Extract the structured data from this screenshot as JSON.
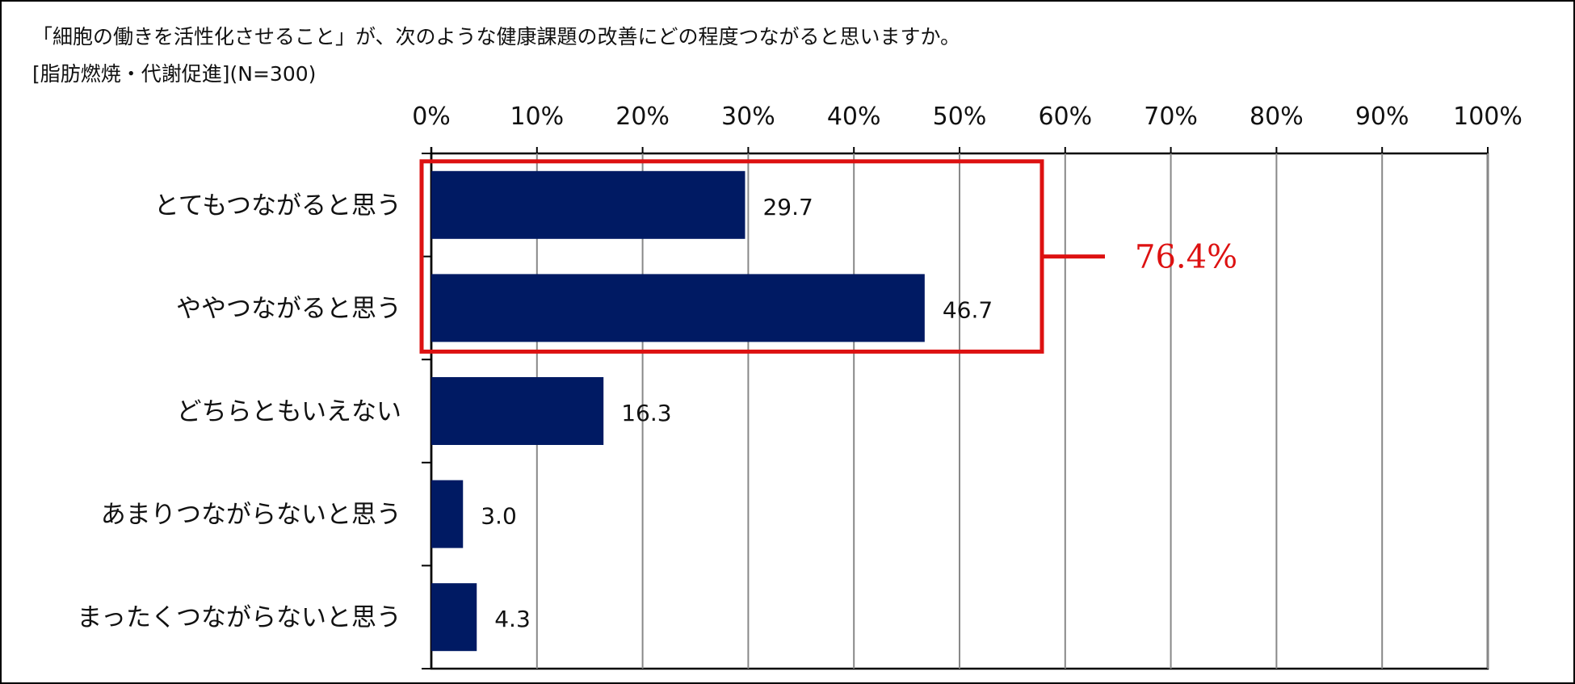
{
  "title": "「細胞の働きを活性化させること」が、次のような健康課題の改善にどの程度つながると思いますか。",
  "subtitle": "[脂肪燃焼・代謝促進](N=300)",
  "colors": {
    "bar": "#001a63",
    "highlight": "#dd1111",
    "grid": "#888888",
    "axis": "#000000"
  },
  "chart_data": {
    "type": "bar",
    "orientation": "horizontal",
    "categories": [
      "とてもつながると思う",
      "ややつながると思う",
      "どちらともいえない",
      "あまりつながらないと思う",
      "まったくつながらないと思う"
    ],
    "values": [
      29.7,
      46.7,
      16.3,
      3.0,
      4.3
    ],
    "value_labels": [
      "29.7",
      "46.7",
      "16.3",
      "3.0",
      "4.3"
    ],
    "xlim": [
      0,
      100
    ],
    "x_ticks": [
      "0%",
      "10%",
      "20%",
      "30%",
      "40%",
      "50%",
      "60%",
      "70%",
      "80%",
      "90%",
      "100%"
    ],
    "x_axis_position": "top",
    "grid": true,
    "legend": "none",
    "annotation": {
      "text": "76.4%",
      "covers": [
        "とてもつながると思う",
        "ややつながると思う"
      ]
    }
  }
}
